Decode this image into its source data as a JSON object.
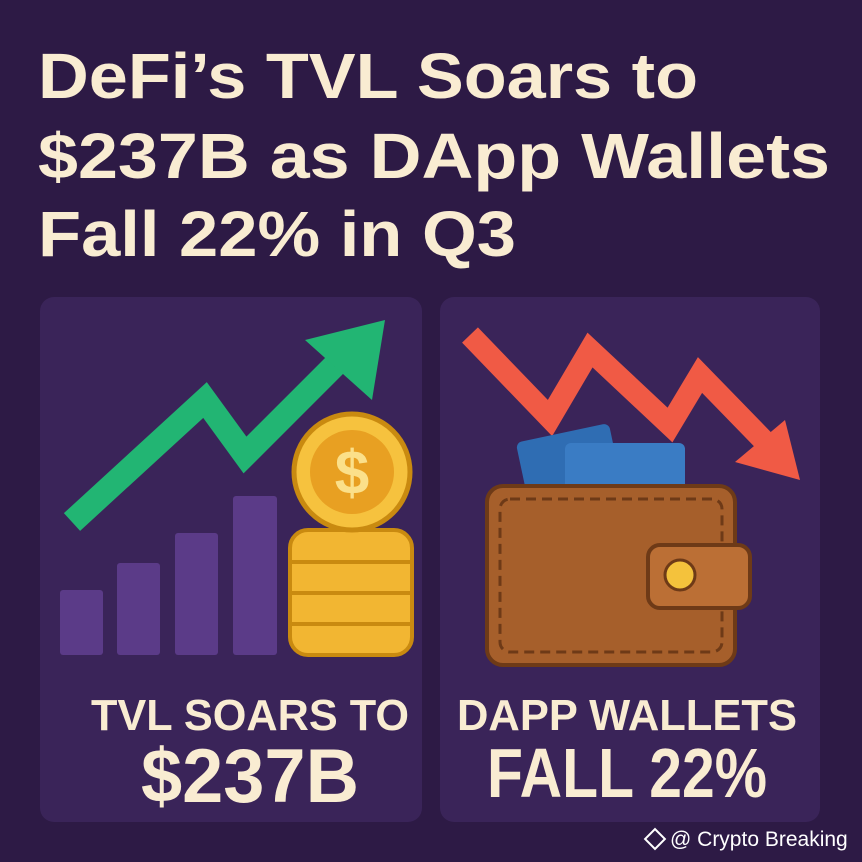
{
  "header": {
    "title_lines": [
      "DeFi’s TVL Soars to",
      "$237B as DApp Wallets",
      "Fall 22% in Q3"
    ]
  },
  "panels": [
    {
      "label_lines": [
        "TVL SOARS TO",
        "$237B"
      ]
    },
    {
      "label_lines": [
        "DAPP WALLETS",
        "FALL 22%"
      ]
    }
  ],
  "watermark": "@ Crypto Breaking"
}
